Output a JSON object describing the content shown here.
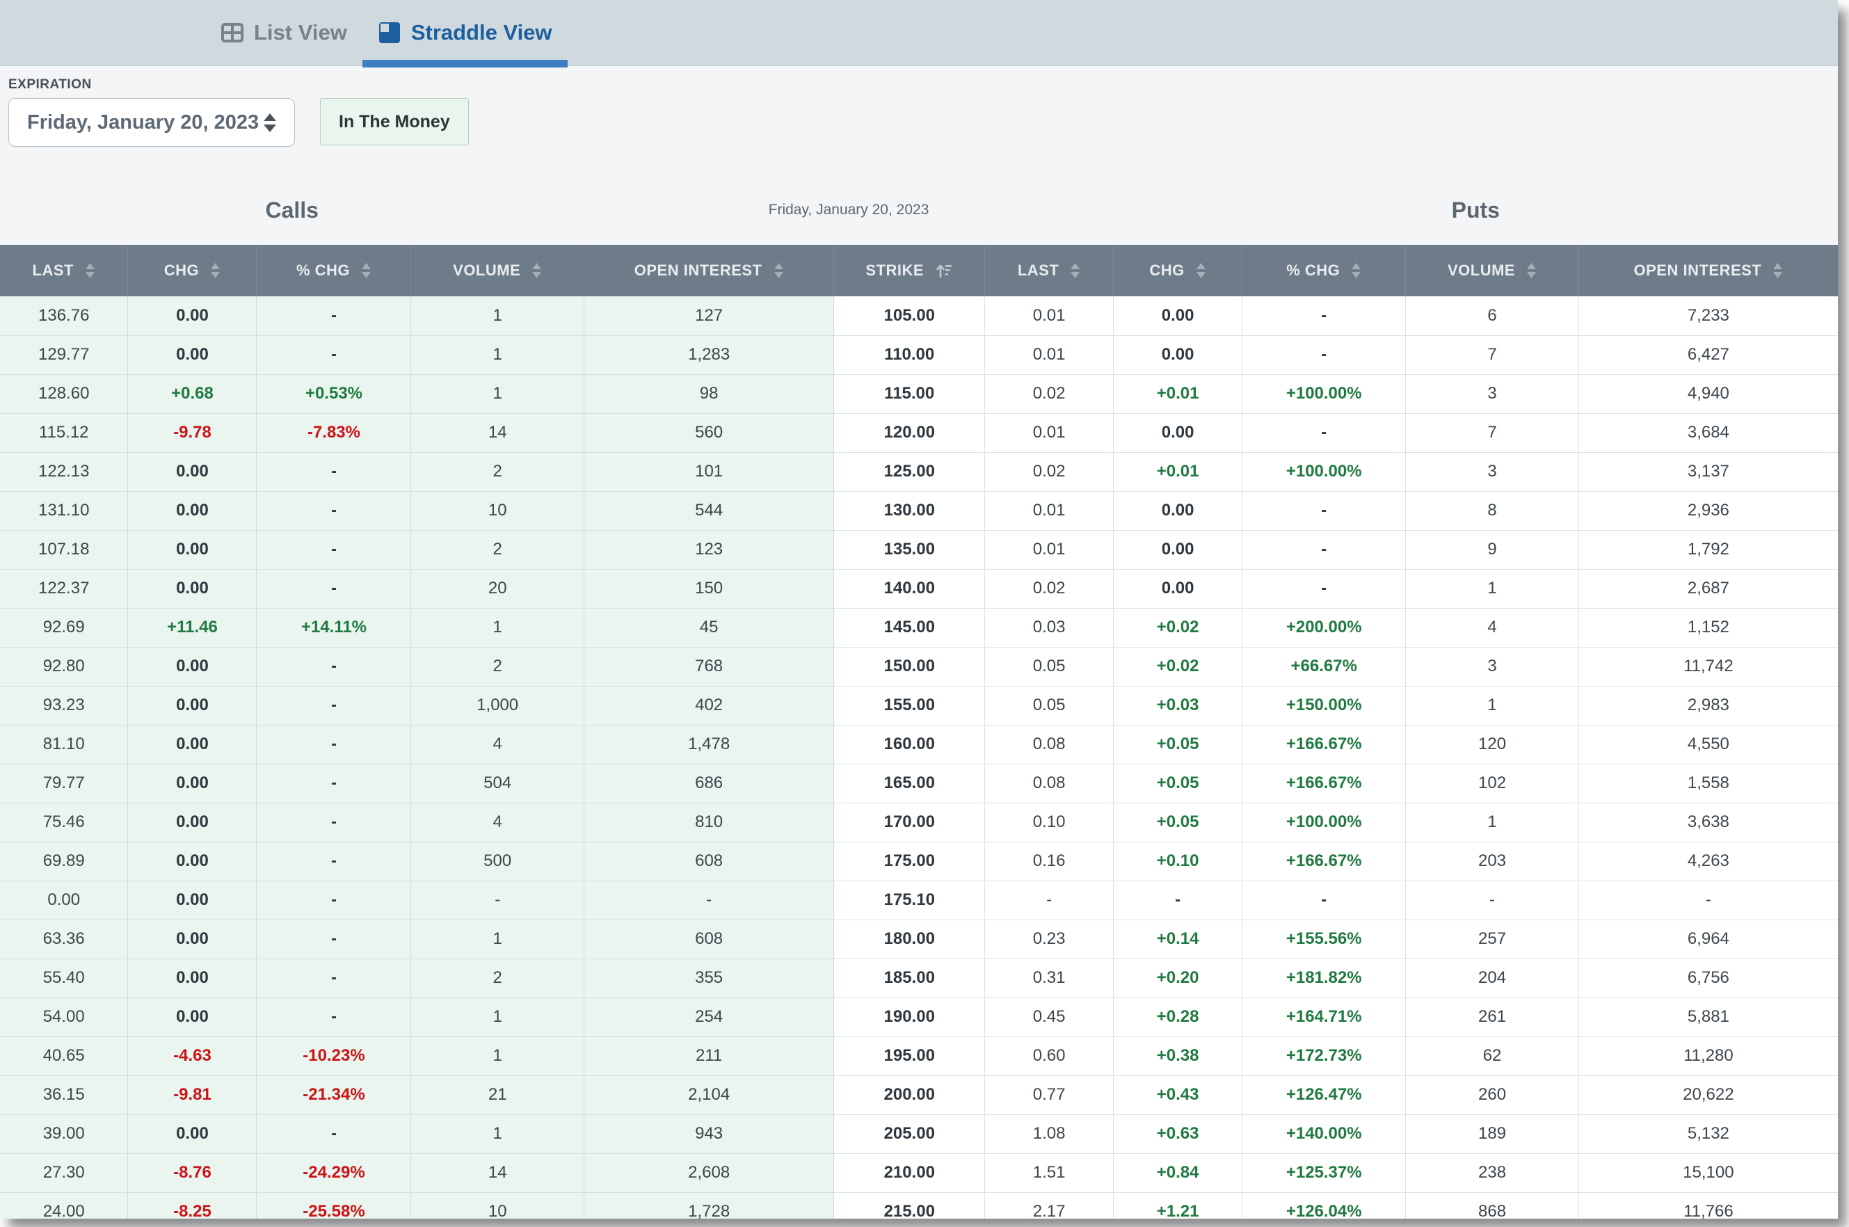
{
  "tabs": {
    "list_view": "List View",
    "straddle_view": "Straddle View"
  },
  "filters": {
    "expiration_label": "EXPIRATION",
    "expiration_value": "Friday, January 20, 2023",
    "in_the_money_button": "In The Money"
  },
  "colors": {
    "accent_blue": "#3e7dc2",
    "active_tab_blue": "#1d5f9e",
    "header_slate": "#6e7b88",
    "calls_mint": "#e9f5ee",
    "positive_green": "#217a42",
    "negative_red": "#cc1417"
  },
  "table": {
    "calls_title": "Calls",
    "date_label": "Friday, January 20, 2023",
    "puts_title": "Puts",
    "calls_columns": [
      "LAST",
      "CHG",
      "% CHG",
      "VOLUME",
      "OPEN INTEREST"
    ],
    "strike_column": "STRIKE",
    "puts_columns": [
      "LAST",
      "CHG",
      "% CHG",
      "VOLUME",
      "OPEN INTEREST"
    ],
    "rows": [
      {
        "calls": [
          "136.76",
          "0.00",
          "-",
          "1",
          "127"
        ],
        "strike": "105.00",
        "puts": [
          "0.01",
          "0.00",
          "-",
          "6",
          "7,233"
        ]
      },
      {
        "calls": [
          "129.77",
          "0.00",
          "-",
          "1",
          "1,283"
        ],
        "strike": "110.00",
        "puts": [
          "0.01",
          "0.00",
          "-",
          "7",
          "6,427"
        ]
      },
      {
        "calls": [
          "128.60",
          "+0.68",
          "+0.53%",
          "1",
          "98"
        ],
        "strike": "115.00",
        "puts": [
          "0.02",
          "+0.01",
          "+100.00%",
          "3",
          "4,940"
        ]
      },
      {
        "calls": [
          "115.12",
          "-9.78",
          "-7.83%",
          "14",
          "560"
        ],
        "strike": "120.00",
        "puts": [
          "0.01",
          "0.00",
          "-",
          "7",
          "3,684"
        ]
      },
      {
        "calls": [
          "122.13",
          "0.00",
          "-",
          "2",
          "101"
        ],
        "strike": "125.00",
        "puts": [
          "0.02",
          "+0.01",
          "+100.00%",
          "3",
          "3,137"
        ]
      },
      {
        "calls": [
          "131.10",
          "0.00",
          "-",
          "10",
          "544"
        ],
        "strike": "130.00",
        "puts": [
          "0.01",
          "0.00",
          "-",
          "8",
          "2,936"
        ]
      },
      {
        "calls": [
          "107.18",
          "0.00",
          "-",
          "2",
          "123"
        ],
        "strike": "135.00",
        "puts": [
          "0.01",
          "0.00",
          "-",
          "9",
          "1,792"
        ]
      },
      {
        "calls": [
          "122.37",
          "0.00",
          "-",
          "20",
          "150"
        ],
        "strike": "140.00",
        "puts": [
          "0.02",
          "0.00",
          "-",
          "1",
          "2,687"
        ]
      },
      {
        "calls": [
          "92.69",
          "+11.46",
          "+14.11%",
          "1",
          "45"
        ],
        "strike": "145.00",
        "puts": [
          "0.03",
          "+0.02",
          "+200.00%",
          "4",
          "1,152"
        ]
      },
      {
        "calls": [
          "92.80",
          "0.00",
          "-",
          "2",
          "768"
        ],
        "strike": "150.00",
        "puts": [
          "0.05",
          "+0.02",
          "+66.67%",
          "3",
          "11,742"
        ]
      },
      {
        "calls": [
          "93.23",
          "0.00",
          "-",
          "1,000",
          "402"
        ],
        "strike": "155.00",
        "puts": [
          "0.05",
          "+0.03",
          "+150.00%",
          "1",
          "2,983"
        ]
      },
      {
        "calls": [
          "81.10",
          "0.00",
          "-",
          "4",
          "1,478"
        ],
        "strike": "160.00",
        "puts": [
          "0.08",
          "+0.05",
          "+166.67%",
          "120",
          "4,550"
        ]
      },
      {
        "calls": [
          "79.77",
          "0.00",
          "-",
          "504",
          "686"
        ],
        "strike": "165.00",
        "puts": [
          "0.08",
          "+0.05",
          "+166.67%",
          "102",
          "1,558"
        ]
      },
      {
        "calls": [
          "75.46",
          "0.00",
          "-",
          "4",
          "810"
        ],
        "strike": "170.00",
        "puts": [
          "0.10",
          "+0.05",
          "+100.00%",
          "1",
          "3,638"
        ]
      },
      {
        "calls": [
          "69.89",
          "0.00",
          "-",
          "500",
          "608"
        ],
        "strike": "175.00",
        "puts": [
          "0.16",
          "+0.10",
          "+166.67%",
          "203",
          "4,263"
        ]
      },
      {
        "calls": [
          "0.00",
          "0.00",
          "-",
          "-",
          "-"
        ],
        "strike": "175.10",
        "puts": [
          "-",
          "-",
          "-",
          "-",
          "-"
        ]
      },
      {
        "calls": [
          "63.36",
          "0.00",
          "-",
          "1",
          "608"
        ],
        "strike": "180.00",
        "puts": [
          "0.23",
          "+0.14",
          "+155.56%",
          "257",
          "6,964"
        ]
      },
      {
        "calls": [
          "55.40",
          "0.00",
          "-",
          "2",
          "355"
        ],
        "strike": "185.00",
        "puts": [
          "0.31",
          "+0.20",
          "+181.82%",
          "204",
          "6,756"
        ]
      },
      {
        "calls": [
          "54.00",
          "0.00",
          "-",
          "1",
          "254"
        ],
        "strike": "190.00",
        "puts": [
          "0.45",
          "+0.28",
          "+164.71%",
          "261",
          "5,881"
        ]
      },
      {
        "calls": [
          "40.65",
          "-4.63",
          "-10.23%",
          "1",
          "211"
        ],
        "strike": "195.00",
        "puts": [
          "0.60",
          "+0.38",
          "+172.73%",
          "62",
          "11,280"
        ]
      },
      {
        "calls": [
          "36.15",
          "-9.81",
          "-21.34%",
          "21",
          "2,104"
        ],
        "strike": "200.00",
        "puts": [
          "0.77",
          "+0.43",
          "+126.47%",
          "260",
          "20,622"
        ]
      },
      {
        "calls": [
          "39.00",
          "0.00",
          "-",
          "1",
          "943"
        ],
        "strike": "205.00",
        "puts": [
          "1.08",
          "+0.63",
          "+140.00%",
          "189",
          "5,132"
        ]
      },
      {
        "calls": [
          "27.30",
          "-8.76",
          "-24.29%",
          "14",
          "2,608"
        ],
        "strike": "210.00",
        "puts": [
          "1.51",
          "+0.84",
          "+125.37%",
          "238",
          "15,100"
        ]
      },
      {
        "calls": [
          "24.00",
          "-8.25",
          "-25.58%",
          "10",
          "1,728"
        ],
        "strike": "215.00",
        "puts": [
          "2.17",
          "+1.21",
          "+126.04%",
          "868",
          "11,766"
        ]
      }
    ]
  }
}
